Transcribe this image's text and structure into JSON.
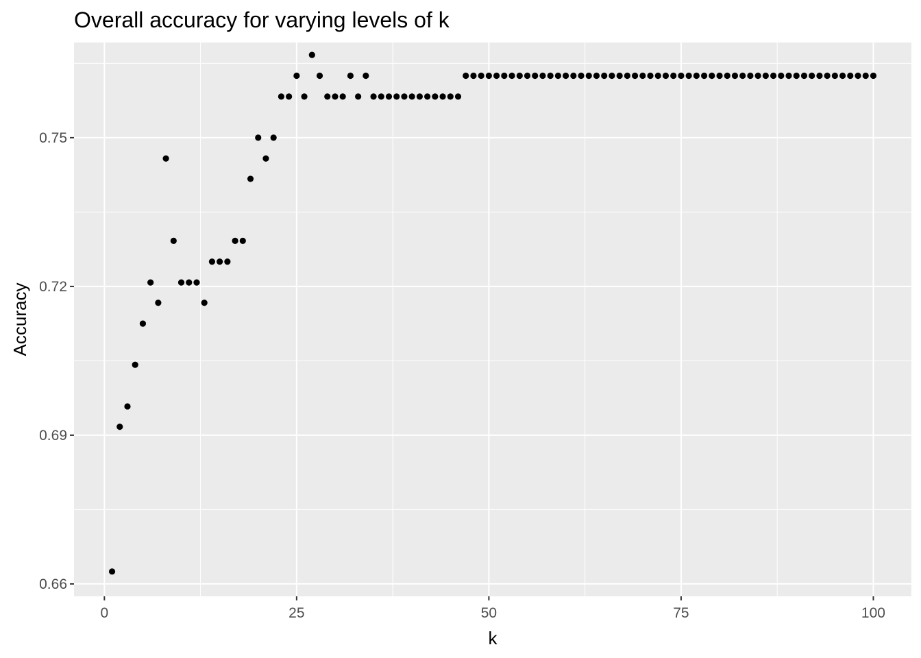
{
  "chart_data": {
    "type": "scatter",
    "title": "Overall accuracy for varying levels of k",
    "xlabel": "k",
    "ylabel": "Accuracy",
    "xlim": [
      -3.95,
      104.95
    ],
    "ylim": [
      0.6575,
      0.7692
    ],
    "x_ticks": [
      0,
      25,
      50,
      75,
      100
    ],
    "x_tick_labels": [
      "0",
      "25",
      "50",
      "75",
      "100"
    ],
    "y_ticks": [
      0.66,
      0.69,
      0.72,
      0.75
    ],
    "y_tick_labels": [
      "0.66",
      "0.69",
      "0.72",
      "0.75"
    ],
    "x_minor": [
      12.5,
      37.5,
      62.5,
      87.5
    ],
    "y_minor": [
      0.675,
      0.705,
      0.735,
      0.765
    ],
    "grid": true,
    "legend": "none",
    "point_color": "#000000",
    "panel_background": "#ebebeb",
    "grid_color": "#ffffff",
    "x": [
      1,
      2,
      3,
      4,
      5,
      6,
      7,
      8,
      9,
      10,
      11,
      12,
      13,
      14,
      15,
      16,
      17,
      18,
      19,
      20,
      21,
      22,
      23,
      24,
      25,
      26,
      27,
      28,
      29,
      30,
      31,
      32,
      33,
      34,
      35,
      36,
      37,
      38,
      39,
      40,
      41,
      42,
      43,
      44,
      45,
      46,
      47,
      48,
      49,
      50,
      51,
      52,
      53,
      54,
      55,
      56,
      57,
      58,
      59,
      60,
      61,
      62,
      63,
      64,
      65,
      66,
      67,
      68,
      69,
      70,
      71,
      72,
      73,
      74,
      75,
      76,
      77,
      78,
      79,
      80,
      81,
      82,
      83,
      84,
      85,
      86,
      87,
      88,
      89,
      90,
      91,
      92,
      93,
      94,
      95,
      96,
      97,
      98,
      99,
      100
    ],
    "y": [
      0.6625,
      0.6917,
      0.6958,
      0.7042,
      0.7125,
      0.7208,
      0.7167,
      0.7458,
      0.7292,
      0.7208,
      0.7208,
      0.7208,
      0.7167,
      0.725,
      0.725,
      0.725,
      0.7292,
      0.7292,
      0.7417,
      0.75,
      0.7458,
      0.75,
      0.7583,
      0.7583,
      0.7625,
      0.7583,
      0.7667,
      0.7625,
      0.7583,
      0.7583,
      0.7583,
      0.7625,
      0.7583,
      0.7625,
      0.7583,
      0.7583,
      0.7583,
      0.7583,
      0.7583,
      0.7583,
      0.7583,
      0.7583,
      0.7583,
      0.7583,
      0.7583,
      0.7583,
      0.7625,
      0.7625,
      0.7625,
      0.7625,
      0.7625,
      0.7625,
      0.7625,
      0.7625,
      0.7625,
      0.7625,
      0.7625,
      0.7625,
      0.7625,
      0.7625,
      0.7625,
      0.7625,
      0.7625,
      0.7625,
      0.7625,
      0.7625,
      0.7625,
      0.7625,
      0.7625,
      0.7625,
      0.7625,
      0.7625,
      0.7625,
      0.7625,
      0.7625,
      0.7625,
      0.7625,
      0.7625,
      0.7625,
      0.7625,
      0.7625,
      0.7625,
      0.7625,
      0.7625,
      0.7625,
      0.7625,
      0.7625,
      0.7625,
      0.7625,
      0.7625,
      0.7625,
      0.7625,
      0.7625,
      0.7625,
      0.7625,
      0.7625,
      0.7625,
      0.7625,
      0.7625,
      0.7625
    ]
  }
}
